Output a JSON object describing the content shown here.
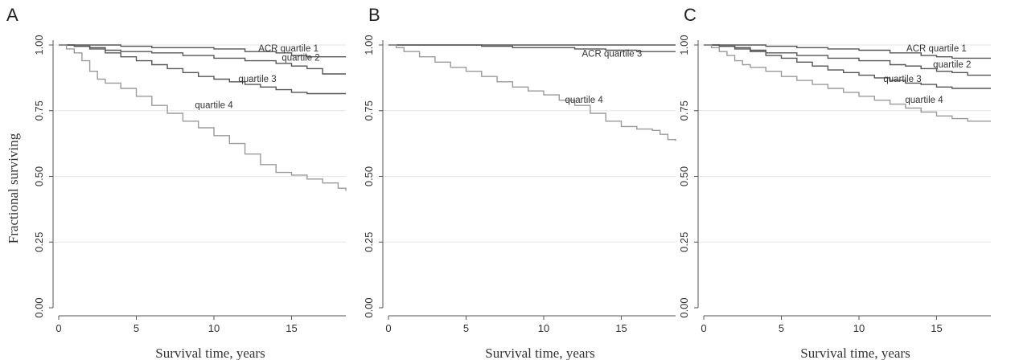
{
  "chart_data": [
    {
      "type": "line",
      "panel": "A",
      "xlabel": "Survival time, years",
      "ylabel": "Fractional surviving",
      "xlim": [
        0,
        18.5
      ],
      "ylim": [
        0,
        1
      ],
      "xticks": [
        0,
        5,
        10,
        15
      ],
      "yticks": [
        "0.00",
        "0.25",
        "0.50",
        "0.75",
        "1.00"
      ],
      "grid": true,
      "series": [
        {
          "name": "ACR quartile 1",
          "color": "#555555",
          "x": [
            0,
            2,
            4,
            6,
            8,
            10,
            12,
            14,
            15,
            16,
            17,
            18.5
          ],
          "y": [
            1.0,
            1.0,
            0.995,
            0.99,
            0.99,
            0.985,
            0.975,
            0.97,
            0.96,
            0.955,
            0.955,
            0.955
          ]
        },
        {
          "name": "quartile 2",
          "color": "#555555",
          "x": [
            0,
            1,
            2,
            3,
            4,
            6,
            8,
            10,
            12,
            14,
            15,
            16,
            17,
            18.5
          ],
          "y": [
            1.0,
            0.995,
            0.99,
            0.98,
            0.975,
            0.97,
            0.96,
            0.95,
            0.94,
            0.93,
            0.92,
            0.91,
            0.89,
            0.89
          ]
        },
        {
          "name": "quartile 3",
          "color": "#555555",
          "x": [
            0,
            1,
            2,
            3,
            4,
            5,
            6,
            7,
            8,
            9,
            10,
            11,
            12,
            13,
            14,
            15,
            16,
            18.5
          ],
          "y": [
            1.0,
            0.995,
            0.985,
            0.97,
            0.955,
            0.94,
            0.925,
            0.91,
            0.895,
            0.88,
            0.87,
            0.86,
            0.85,
            0.84,
            0.83,
            0.82,
            0.815,
            0.815
          ]
        },
        {
          "name": "quartile 4",
          "color": "#9a9a9a",
          "x": [
            0,
            0.5,
            1,
            1.5,
            2,
            2.5,
            3,
            4,
            5,
            6,
            7,
            8,
            9,
            10,
            11,
            12,
            13,
            14,
            15,
            16,
            17,
            18,
            18.5
          ],
          "y": [
            1.0,
            0.985,
            0.97,
            0.94,
            0.9,
            0.87,
            0.855,
            0.835,
            0.805,
            0.77,
            0.74,
            0.71,
            0.685,
            0.655,
            0.625,
            0.585,
            0.545,
            0.515,
            0.505,
            0.49,
            0.475,
            0.455,
            0.445
          ]
        }
      ],
      "labels": [
        {
          "text": "ACR quartile 1",
          "x": 14.8,
          "y": 0.975
        },
        {
          "text": "quartile 2",
          "x": 15.6,
          "y": 0.94
        },
        {
          "text": "quartile 3",
          "x": 12.8,
          "y": 0.86
        },
        {
          "text": "quartile 4",
          "x": 10.0,
          "y": 0.76
        }
      ]
    },
    {
      "type": "line",
      "panel": "B",
      "xlabel": "Survival time, years",
      "ylabel": "",
      "xlim": [
        0,
        18.5
      ],
      "ylim": [
        0,
        1
      ],
      "xticks": [
        0,
        5,
        10,
        15
      ],
      "yticks": [
        "0.00",
        "0.25",
        "0.50",
        "0.75",
        "1.00"
      ],
      "grid": true,
      "series": [
        {
          "name": "",
          "color": "#555555",
          "x": [
            0,
            18.5
          ],
          "y": [
            1.0,
            1.0
          ]
        },
        {
          "name": "ACR quartile 3",
          "color": "#555555",
          "x": [
            0,
            4,
            6,
            8,
            10,
            12,
            14,
            16,
            18.5
          ],
          "y": [
            1.0,
            1.0,
            0.995,
            0.99,
            0.99,
            0.985,
            0.98,
            0.975,
            0.975
          ]
        },
        {
          "name": "quartile 4",
          "color": "#9a9a9a",
          "x": [
            0,
            0.5,
            1,
            2,
            3,
            4,
            5,
            6,
            7,
            8,
            9,
            10,
            11,
            12,
            13,
            14,
            15,
            16,
            17,
            17.5,
            18,
            18.5
          ],
          "y": [
            1.0,
            0.99,
            0.975,
            0.955,
            0.935,
            0.915,
            0.9,
            0.88,
            0.86,
            0.84,
            0.825,
            0.81,
            0.79,
            0.77,
            0.74,
            0.71,
            0.69,
            0.68,
            0.675,
            0.66,
            0.64,
            0.635
          ]
        }
      ],
      "labels": [
        {
          "text": "ACR quartile 3",
          "x": 14.4,
          "y": 0.955
        },
        {
          "text": "quartile 4",
          "x": 12.6,
          "y": 0.78
        }
      ]
    },
    {
      "type": "line",
      "panel": "C",
      "xlabel": "Survival time, years",
      "ylabel": "",
      "xlim": [
        0,
        18.5
      ],
      "ylim": [
        0,
        1
      ],
      "xticks": [
        0,
        5,
        10,
        15
      ],
      "yticks": [
        "0.00",
        "0.25",
        "0.50",
        "0.75",
        "1.00"
      ],
      "grid": true,
      "series": [
        {
          "name": "ACR quartile 1",
          "color": "#555555",
          "x": [
            0,
            2,
            4,
            6,
            8,
            10,
            12,
            14,
            15,
            16,
            18.5
          ],
          "y": [
            1.0,
            1.0,
            0.995,
            0.99,
            0.985,
            0.98,
            0.97,
            0.96,
            0.955,
            0.95,
            0.95
          ]
        },
        {
          "name": "quartile 2",
          "color": "#555555",
          "x": [
            0,
            1,
            2,
            3,
            4,
            6,
            8,
            10,
            12,
            13,
            14,
            15,
            16,
            17,
            18.5
          ],
          "y": [
            1.0,
            0.995,
            0.99,
            0.98,
            0.97,
            0.96,
            0.95,
            0.94,
            0.925,
            0.92,
            0.91,
            0.9,
            0.895,
            0.885,
            0.885
          ]
        },
        {
          "name": "quartile 3",
          "color": "#555555",
          "x": [
            0,
            1,
            2,
            3,
            4,
            5,
            6,
            7,
            8,
            9,
            10,
            11,
            12,
            13,
            14,
            15,
            16,
            18.5
          ],
          "y": [
            1.0,
            0.995,
            0.985,
            0.975,
            0.96,
            0.95,
            0.935,
            0.92,
            0.905,
            0.895,
            0.885,
            0.875,
            0.865,
            0.855,
            0.85,
            0.84,
            0.835,
            0.835
          ]
        },
        {
          "name": "quartile 4",
          "color": "#9a9a9a",
          "x": [
            0,
            0.5,
            1,
            1.5,
            2,
            2.5,
            3,
            4,
            5,
            6,
            7,
            8,
            9,
            10,
            11,
            12,
            13,
            14,
            15,
            16,
            17,
            18.5
          ],
          "y": [
            1.0,
            0.99,
            0.975,
            0.96,
            0.94,
            0.925,
            0.915,
            0.9,
            0.88,
            0.865,
            0.85,
            0.835,
            0.82,
            0.805,
            0.79,
            0.775,
            0.76,
            0.745,
            0.73,
            0.72,
            0.71,
            0.71
          ]
        }
      ],
      "labels": [
        {
          "text": "ACR quartile 1",
          "x": 15.0,
          "y": 0.975
        },
        {
          "text": "quartile 2",
          "x": 16.0,
          "y": 0.915
        },
        {
          "text": "quartile 3",
          "x": 12.8,
          "y": 0.86
        },
        {
          "text": "quartile 4",
          "x": 14.2,
          "y": 0.78
        }
      ]
    }
  ]
}
